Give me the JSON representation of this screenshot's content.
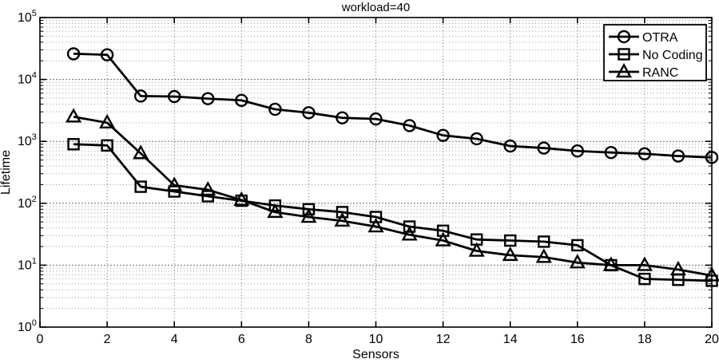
{
  "title": "workload=40",
  "axes": {
    "x": {
      "label": "Sensors",
      "min": 0,
      "max": 20,
      "ticks": [
        0,
        2,
        4,
        6,
        8,
        10,
        12,
        14,
        16,
        18,
        20
      ]
    },
    "y": {
      "label": "Lifetime",
      "scale": "log",
      "min_exp": 0,
      "max_exp": 5,
      "tick_base": "10"
    }
  },
  "legend": {
    "position": "top-right",
    "items": [
      {
        "label": "OTRA",
        "marker": "circle-icon"
      },
      {
        "label": "No Coding",
        "marker": "square-icon"
      },
      {
        "label": "RANC",
        "marker": "triangle-icon"
      }
    ]
  },
  "colors": {
    "line": "#000000",
    "grid_major": "#6e6e6e",
    "grid_minor": "#9a9a9a",
    "background": "#ffffff",
    "legend_border": "#000000",
    "axis_box": "#000000"
  },
  "chart_data": {
    "type": "line",
    "title": "workload=40",
    "xlabel": "Sensors",
    "ylabel": "Lifetime",
    "x": [
      1,
      2,
      3,
      4,
      5,
      6,
      7,
      8,
      9,
      10,
      11,
      12,
      13,
      14,
      15,
      16,
      17,
      18,
      19,
      20
    ],
    "series": [
      {
        "name": "OTRA",
        "marker": "circle",
        "values": [
          26000,
          25000,
          5400,
          5300,
          4900,
          4600,
          3300,
          2900,
          2400,
          2300,
          1800,
          1250,
          1100,
          840,
          780,
          700,
          660,
          630,
          580,
          550
        ]
      },
      {
        "name": "No Coding",
        "marker": "square",
        "values": [
          900,
          860,
          185,
          155,
          130,
          110,
          92,
          80,
          72,
          60,
          42,
          36,
          26,
          25,
          24,
          21,
          10,
          6,
          5.8,
          5.6
        ]
      },
      {
        "name": "RANC",
        "marker": "triangle",
        "values": [
          2500,
          2000,
          640,
          195,
          165,
          113,
          72,
          60,
          52,
          42,
          31,
          25,
          17,
          14.5,
          13.5,
          11,
          10,
          10,
          8.5,
          6.8
        ]
      }
    ],
    "xlim": [
      0,
      20
    ],
    "ylog": true,
    "ylim": [
      1,
      100000
    ],
    "grid": true,
    "legend_position": "top-right"
  }
}
